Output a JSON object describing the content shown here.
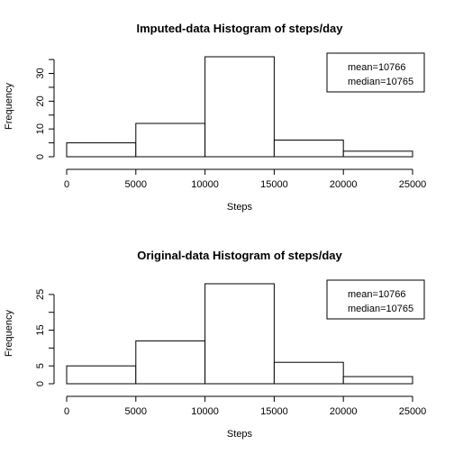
{
  "chart_data": [
    {
      "type": "bar",
      "title": "Imputed-data Histogram of steps/day",
      "xlabel": "Steps",
      "ylabel": "Frequency",
      "bins": [
        [
          0,
          5000
        ],
        [
          5000,
          10000
        ],
        [
          10000,
          15000
        ],
        [
          15000,
          20000
        ],
        [
          20000,
          25000
        ]
      ],
      "values": [
        5,
        12,
        36,
        6,
        2
      ],
      "xlim": [
        0,
        25000
      ],
      "ylim": [
        0,
        36
      ],
      "xticks": [
        "0",
        "5000",
        "10000",
        "15000",
        "20000",
        "25000"
      ],
      "yticks": [
        "0",
        "10",
        "20",
        "30"
      ],
      "ytick_values": [
        0,
        10,
        20,
        30
      ],
      "yminor_ticks": [
        5,
        15,
        25,
        35
      ],
      "grid": false,
      "legend_position": "top-right",
      "legend": [
        "mean=10766",
        "median=10765"
      ]
    },
    {
      "type": "bar",
      "title": "Original-data Histogram of steps/day",
      "xlabel": "Steps",
      "ylabel": "Frequency",
      "bins": [
        [
          0,
          5000
        ],
        [
          5000,
          10000
        ],
        [
          10000,
          15000
        ],
        [
          15000,
          20000
        ],
        [
          20000,
          25000
        ]
      ],
      "values": [
        5,
        12,
        28,
        6,
        2
      ],
      "xlim": [
        0,
        25000
      ],
      "ylim": [
        0,
        28
      ],
      "xticks": [
        "0",
        "5000",
        "10000",
        "15000",
        "20000",
        "25000"
      ],
      "yticks": [
        "0",
        "5",
        "15",
        "25"
      ],
      "ytick_values": [
        0,
        5,
        15,
        25
      ],
      "yminor_ticks": [
        10,
        20
      ],
      "grid": false,
      "legend_position": "top-right",
      "legend": [
        "mean=10766",
        "median=10765"
      ]
    }
  ]
}
